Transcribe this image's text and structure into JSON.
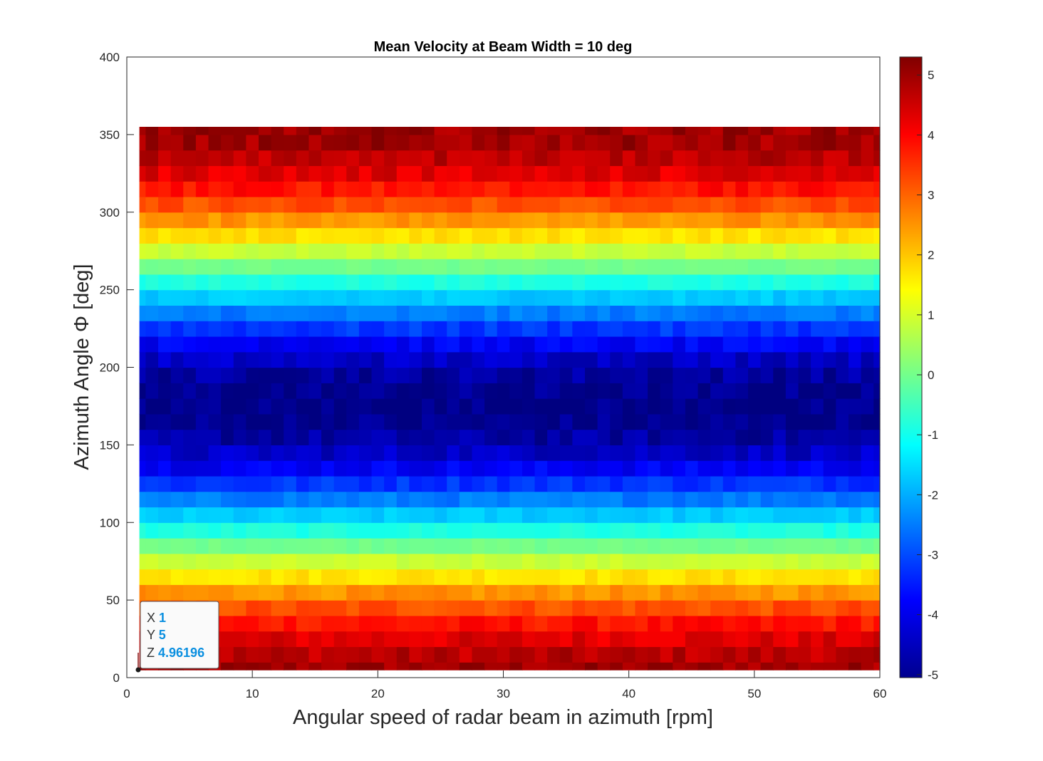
{
  "chart_data": {
    "type": "heatmap",
    "title": "Mean Velocity at Beam Width = 10 deg",
    "xlabel": "Angular speed of radar beam in azimuth [rpm]",
    "ylabel": "Azimuth Angle Φ [deg]",
    "xlim": [
      0,
      60
    ],
    "ylim": [
      0,
      400
    ],
    "x_ticks": [
      "0",
      "10",
      "20",
      "30",
      "40",
      "50",
      "60"
    ],
    "y_ticks": [
      "0",
      "50",
      "100",
      "150",
      "200",
      "250",
      "300",
      "350",
      "400"
    ],
    "x_range": [
      1,
      60
    ],
    "y_range": [
      5,
      355
    ],
    "y_step": 10,
    "colormap": "jet",
    "color_limits": [
      -5.05,
      5.3
    ],
    "colorbar_ticks": [
      "-5",
      "-4",
      "-3",
      "-2",
      "-1",
      "0",
      "1",
      "2",
      "3",
      "4",
      "5"
    ],
    "row_values": [
      4.96,
      4.7,
      4.33,
      3.83,
      3.21,
      2.5,
      1.71,
      0.87,
      0.0,
      -0.87,
      -1.71,
      -2.5,
      -3.21,
      -3.83,
      -4.33,
      -4.7,
      -4.92,
      -5.0,
      -4.92,
      -4.7,
      -4.33,
      -3.83,
      -3.21,
      -2.5,
      -1.71,
      -0.87,
      0.0,
      0.87,
      1.71,
      2.5,
      3.21,
      3.83,
      4.33,
      4.7,
      4.96,
      5.0
    ]
  },
  "datatip": {
    "x_key": "X",
    "x_val": "1",
    "y_key": "Y",
    "y_val": "5",
    "z_key": "Z",
    "z_val": "4.96196"
  }
}
